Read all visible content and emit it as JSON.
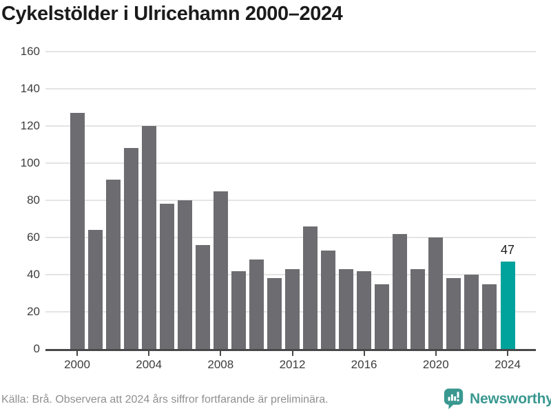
{
  "title": "Cykelstölder i Ulricehamn 2000–2024",
  "chart_data": {
    "type": "bar",
    "title": "Cykelstölder i Ulricehamn 2000–2024",
    "x": [
      2000,
      2001,
      2002,
      2003,
      2004,
      2005,
      2006,
      2007,
      2008,
      2009,
      2010,
      2011,
      2012,
      2013,
      2014,
      2015,
      2016,
      2017,
      2018,
      2019,
      2020,
      2021,
      2022,
      2023,
      2024
    ],
    "values": [
      127,
      64,
      91,
      108,
      120,
      78,
      80,
      56,
      85,
      42,
      48,
      38,
      43,
      66,
      53,
      43,
      42,
      35,
      62,
      43,
      60,
      38,
      40,
      35,
      47
    ],
    "xlabel": "",
    "ylabel": "",
    "ylim": [
      0,
      160
    ],
    "yticks": [
      0,
      20,
      40,
      60,
      80,
      100,
      120,
      140,
      160
    ],
    "xticks": [
      2000,
      2004,
      2008,
      2012,
      2016,
      2020,
      2024
    ],
    "grid": true,
    "legend": "none",
    "highlight_year": 2024,
    "highlight_label": "47",
    "bar_color": "#6c6c71",
    "highlight_color": "#00a39b"
  },
  "footer": {
    "source_text": "Källa: Brå. Observera att 2024 års siffror fortfarande är preliminära.",
    "logo_text": "Newsworthy"
  },
  "icons": {
    "logo_icon": "newsworthy-speech-bubble-bar-chart-icon"
  },
  "colors": {
    "background": "#ffffff",
    "bar": "#6c6c71",
    "highlight": "#00a39b",
    "title_text": "#1b1b1b",
    "axis_text": "#3d3d3d",
    "gridline": "#e4e4e4",
    "axis_line": "#47474a",
    "footer_text": "#8f8f8f",
    "logo_teal": "#399890"
  }
}
